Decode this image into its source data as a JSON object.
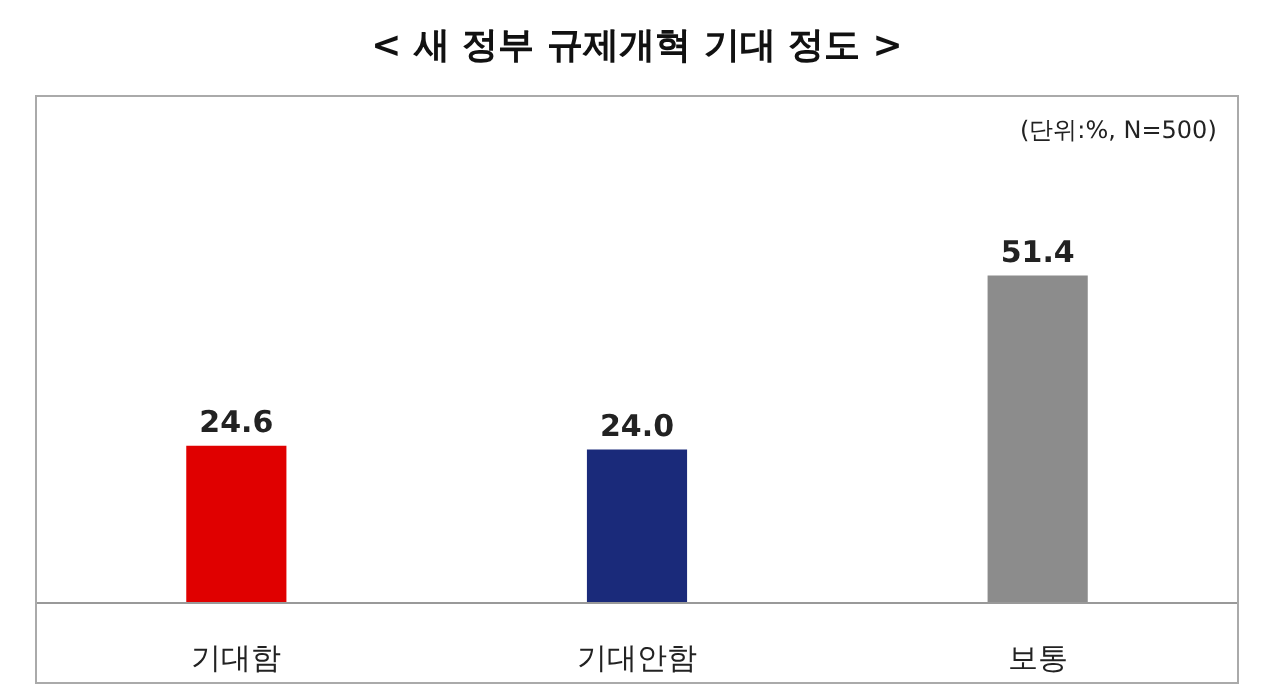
{
  "chart_data": {
    "type": "bar",
    "title": "< 새 정부 규제개혁 기대 정도 >",
    "categories": [
      "기대함",
      "기대안함",
      "보통"
    ],
    "values": [
      24.6,
      24.0,
      51.4
    ],
    "colors": [
      "#e00000",
      "#1a2a7a",
      "#8c8c8c"
    ],
    "value_labels": [
      "24.6",
      "24.0",
      "51.4"
    ],
    "legend": false,
    "annotations": [
      "(단위:%, N=500)"
    ]
  }
}
